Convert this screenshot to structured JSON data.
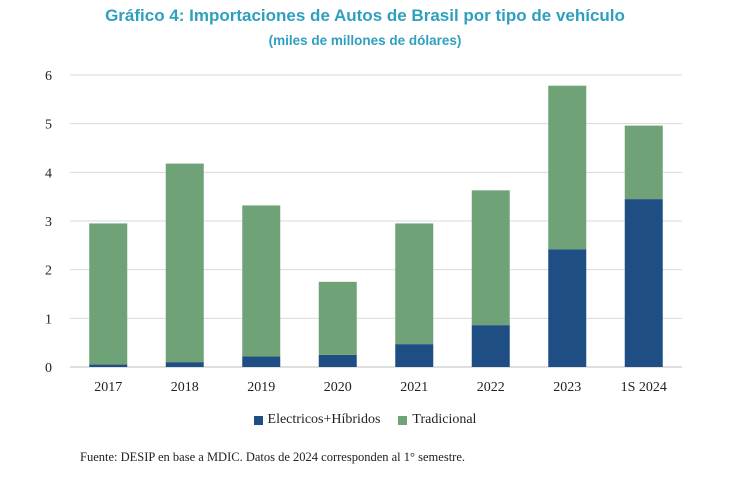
{
  "chart_data": {
    "type": "bar",
    "stacked": true,
    "title": "Gráfico 4: Importaciones de Autos de Brasil por tipo de vehículo",
    "subtitle": "(miles de millones de dólares)",
    "categories": [
      "2017",
      "2018",
      "2019",
      "2020",
      "2021",
      "2022",
      "2023",
      "1S 2024"
    ],
    "series": [
      {
        "name": "Electricos+Híbridos",
        "color": "#1f4e85",
        "values": [
          0.05,
          0.1,
          0.22,
          0.25,
          0.47,
          0.86,
          2.42,
          3.45
        ]
      },
      {
        "name": "Tradicional",
        "color": "#6fa377",
        "values": [
          2.9,
          4.08,
          3.1,
          1.5,
          2.48,
          2.77,
          3.36,
          1.51
        ]
      }
    ],
    "ylim": [
      0,
      6
    ],
    "yticks": [
      "0",
      "1",
      "2",
      "3",
      "4",
      "5",
      "6"
    ],
    "grid": true,
    "legend_position": "bottom"
  },
  "source_note": "Fuente: DESIP en base a MDIC. Datos de 2024 corresponden al 1° semestre."
}
